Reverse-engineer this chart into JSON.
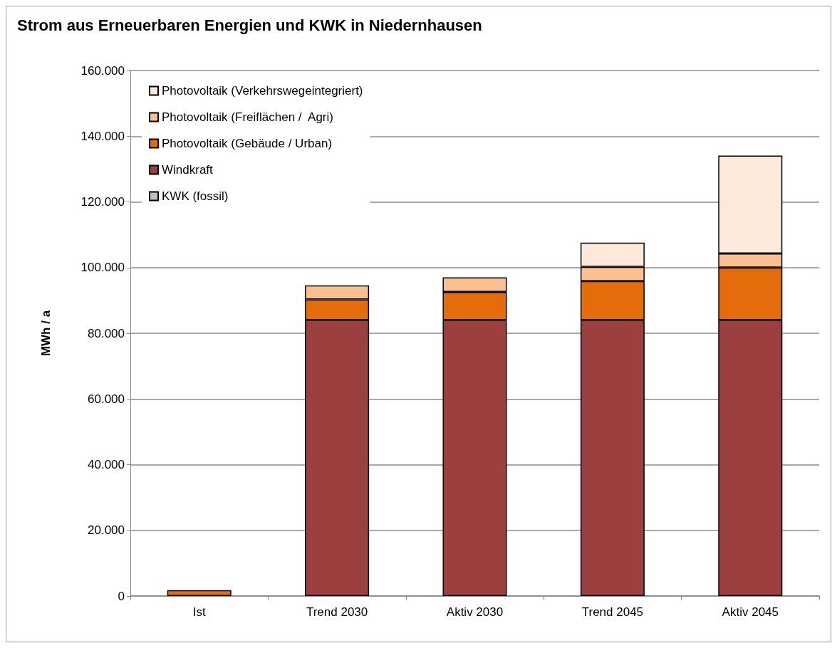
{
  "chart_data": {
    "type": "bar",
    "title": "Strom aus Erneuerbaren Energien und KWK in Niedernhausen",
    "ylabel": "MWh / a",
    "categories": [
      "Ist",
      "Trend 2030",
      "Aktiv 2030",
      "Trend 2045",
      "Aktiv 2045"
    ],
    "stacked": true,
    "series": [
      {
        "name": "KWK (fossil)",
        "color": "#bfbfbf",
        "values": [
          null,
          null,
          null,
          null,
          null
        ]
      },
      {
        "name": "Windkraft",
        "color": "#9b3f3f",
        "values": [
          null,
          84000,
          84000,
          84000,
          84000
        ]
      },
      {
        "name": "Photovoltaik (Gebäude / Urban)",
        "color": "#e46c0a",
        "values": [
          1800,
          6300,
          8600,
          11900,
          16000
        ]
      },
      {
        "name": "Photovoltaik (Freiflächen /  Agri)",
        "color": "#fac090",
        "values": [
          null,
          4300,
          4400,
          4300,
          4300
        ]
      },
      {
        "name": "Photovoltaik (Verkehrswegeintegriert)",
        "color": "#fde9d9",
        "values": [
          null,
          null,
          null,
          7400,
          29800
        ]
      }
    ],
    "ylim": [
      0,
      160000
    ],
    "yticks": [
      {
        "value": 0,
        "label": "0"
      },
      {
        "value": 20000,
        "label": "20.000"
      },
      {
        "value": 40000,
        "label": "40.000"
      },
      {
        "value": 60000,
        "label": "60.000"
      },
      {
        "value": 80000,
        "label": "80.000"
      },
      {
        "value": 100000,
        "label": "100.000"
      },
      {
        "value": 120000,
        "label": "120.000"
      },
      {
        "value": 140000,
        "label": "140.000"
      },
      {
        "value": 160000,
        "label": "160.000"
      }
    ],
    "grid": "y",
    "legend": "top left"
  }
}
